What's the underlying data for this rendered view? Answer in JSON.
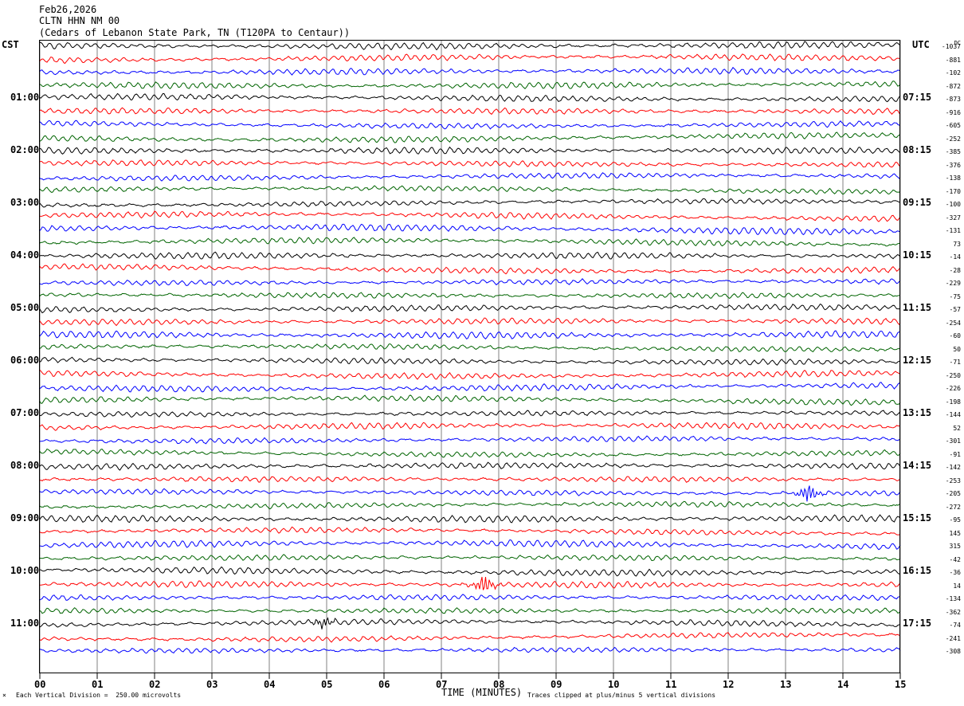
{
  "header": {
    "date": "Feb26,2026",
    "station": "CLTN HHN NM 00",
    "location": "(Cedars of Lebanon State Park, TN (T120PA to Centaur))"
  },
  "left_axis_label": "CST",
  "right_axis_label": "UTC",
  "dc_header": "DC",
  "footer": {
    "vertical_division": "Each Vertical Division =  250.00 microvolts",
    "x_title": "TIME (MINUTES)",
    "clip_note": "Traces clipped at plus/minus 5 vertical divisions"
  },
  "trace_colors": [
    "#000000",
    "#ff0000",
    "#0000ff",
    "#006400"
  ],
  "chart_data": {
    "type": "line",
    "subtype": "helicorder",
    "xlabel": "TIME (MINUTES)",
    "xlim": [
      0,
      15
    ],
    "x_ticks": [
      "00",
      "01",
      "02",
      "03",
      "04",
      "05",
      "06",
      "07",
      "08",
      "09",
      "10",
      "11",
      "12",
      "13",
      "14",
      "15"
    ],
    "grid": true,
    "rows_per_hour": 4,
    "minutes_per_row": 15,
    "cst_labels": [
      "01:00",
      "02:00",
      "03:00",
      "04:00",
      "05:00",
      "06:00",
      "07:00",
      "08:00",
      "09:00",
      "10:00",
      "11:00"
    ],
    "utc_labels": [
      "07:15",
      "08:15",
      "09:15",
      "10:15",
      "11:15",
      "12:15",
      "13:15",
      "14:15",
      "15:15",
      "16:15",
      "17:15"
    ],
    "dc_offsets": [
      "-1037",
      "-881",
      "-102",
      "-872",
      "-873",
      "-916",
      "-605",
      "-252",
      "-385",
      "-376",
      "-138",
      "-170",
      "-100",
      "-327",
      "-131",
      "73",
      "-14",
      "-28",
      "-229",
      "-75",
      "-57",
      "-254",
      "-60",
      "50",
      "-71",
      "-250",
      "-226",
      "-198",
      "-144",
      "52",
      "-301",
      "-91",
      "-142",
      "-253",
      "-205",
      "-272",
      "-95",
      "145",
      "315",
      "-42",
      "-36",
      "14",
      "-134",
      "-362",
      "-74",
      "-241",
      "-308"
    ],
    "events": [
      {
        "row": 34,
        "minute": 13.4,
        "amplitude": 1.3
      },
      {
        "row": 41,
        "minute": 7.75,
        "amplitude": 1.3
      },
      {
        "row": 44,
        "minute": 4.95,
        "amplitude": 0.7
      }
    ]
  }
}
